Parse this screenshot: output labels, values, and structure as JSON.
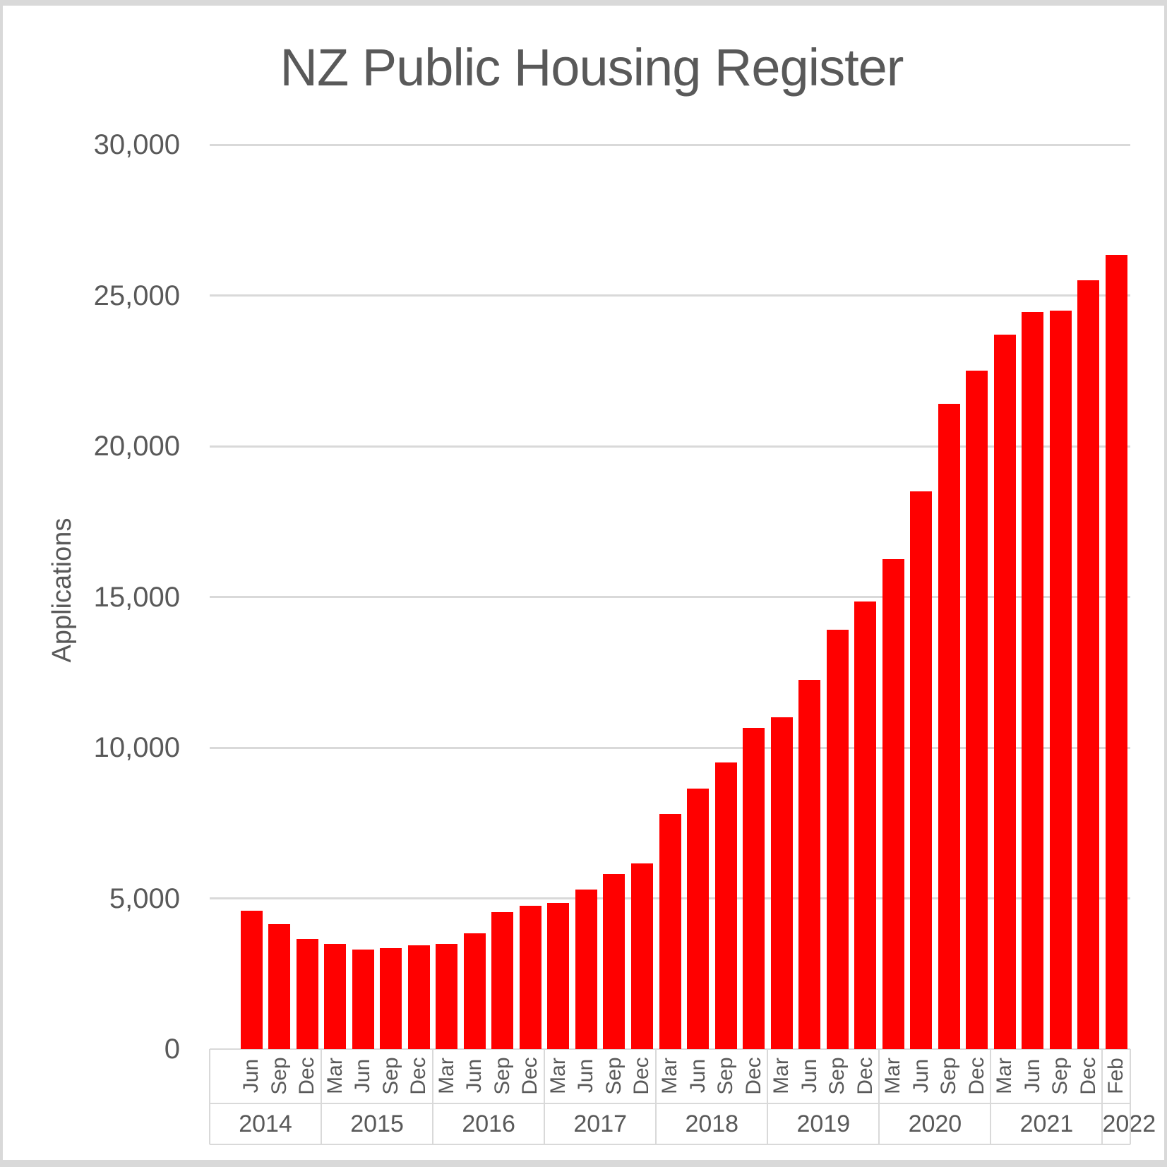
{
  "chart_data": {
    "type": "bar",
    "title": "NZ Public Housing Register",
    "ylabel": "Applications",
    "xlabel": "",
    "ylim": [
      0,
      30000
    ],
    "ytick_interval": 5000,
    "ytick_labels": [
      "0",
      "5,000",
      "10,000",
      "15,000",
      "20,000",
      "25,000",
      "30,000"
    ],
    "grid": true,
    "legend": "none",
    "bar_color": "#ff0000",
    "gridline_color": "#d9d9d9",
    "text_color": "#595959",
    "note_leading_empty_slot": "first 2014 category slot is empty (no bar, no month label)",
    "groups": [
      {
        "year": "2014",
        "months": [
          "",
          "Jun",
          "Sep",
          "Dec"
        ],
        "values": [
          null,
          4600,
          4150,
          3650
        ]
      },
      {
        "year": "2015",
        "months": [
          "Mar",
          "Jun",
          "Sep",
          "Dec"
        ],
        "values": [
          3500,
          3300,
          3350,
          3450
        ]
      },
      {
        "year": "2016",
        "months": [
          "Mar",
          "Jun",
          "Sep",
          "Dec"
        ],
        "values": [
          3500,
          3850,
          4550,
          4750
        ]
      },
      {
        "year": "2017",
        "months": [
          "Mar",
          "Jun",
          "Sep",
          "Dec"
        ],
        "values": [
          4850,
          5300,
          5800,
          6150
        ]
      },
      {
        "year": "2018",
        "months": [
          "Mar",
          "Jun",
          "Sep",
          "Dec"
        ],
        "values": [
          7800,
          8650,
          9500,
          10650
        ]
      },
      {
        "year": "2019",
        "months": [
          "Mar",
          "Jun",
          "Sep",
          "Dec"
        ],
        "values": [
          11000,
          12250,
          13900,
          14850
        ]
      },
      {
        "year": "2020",
        "months": [
          "Mar",
          "Jun",
          "Sep",
          "Dec"
        ],
        "values": [
          16250,
          18500,
          21400,
          22500
        ]
      },
      {
        "year": "2021",
        "months": [
          "Mar",
          "Jun",
          "Sep",
          "Dec"
        ],
        "values": [
          23700,
          24450,
          24500,
          25500
        ]
      },
      {
        "year": "2022",
        "months": [
          "Feb"
        ],
        "values": [
          26350
        ]
      }
    ]
  }
}
